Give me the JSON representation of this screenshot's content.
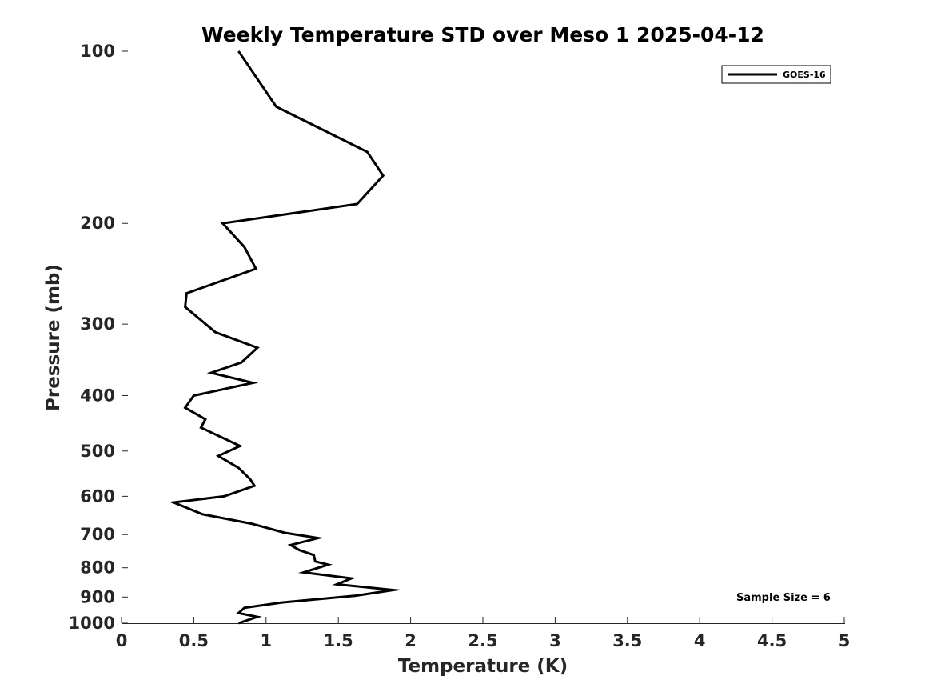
{
  "chart_data": {
    "type": "line",
    "title": "Weekly Temperature STD over Meso 1 2025-04-12",
    "xlabel": "Temperature (K)",
    "ylabel": "Pressure (mb)",
    "xlim": [
      0,
      5
    ],
    "ylim": [
      100,
      1000
    ],
    "yscale": "log",
    "y_reversed": true,
    "x_ticks": [
      0,
      0.5,
      1,
      1.5,
      2,
      2.5,
      3,
      3.5,
      4,
      4.5,
      5
    ],
    "x_tick_labels": [
      "0",
      "0.5",
      "1",
      "1.5",
      "2",
      "2.5",
      "3",
      "3.5",
      "4",
      "4.5",
      "5"
    ],
    "y_ticks": [
      100,
      200,
      300,
      400,
      500,
      600,
      700,
      800,
      900,
      1000
    ],
    "y_tick_labels": [
      "100",
      "200",
      "300",
      "400",
      "500",
      "600",
      "700",
      "800",
      "900",
      "1000"
    ],
    "grid": false,
    "legend": {
      "position": "top-right",
      "entries": [
        "GOES-16"
      ]
    },
    "annotation": "Sample Size = 6",
    "series": [
      {
        "name": "GOES-16",
        "color": "#000000",
        "temperature": [
          0.81,
          1.07,
          1.7,
          1.81,
          1.63,
          0.7,
          0.85,
          0.93,
          0.45,
          0.44,
          0.65,
          0.94,
          0.83,
          0.62,
          0.91,
          0.5,
          0.44,
          0.58,
          0.55,
          0.82,
          0.67,
          0.81,
          0.89,
          0.92,
          0.71,
          0.36,
          0.56,
          0.9,
          1.13,
          1.36,
          1.17,
          1.23,
          1.33,
          1.34,
          1.43,
          1.26,
          1.59,
          1.49,
          1.88,
          1.62,
          1.11,
          0.85,
          0.81,
          0.94,
          0.81
        ],
        "pressure": [
          100,
          125,
          150,
          165,
          185,
          200,
          220,
          240,
          265,
          280,
          310,
          330,
          350,
          365,
          380,
          400,
          420,
          440,
          455,
          490,
          510,
          535,
          560,
          575,
          600,
          615,
          645,
          670,
          695,
          710,
          730,
          745,
          760,
          780,
          790,
          815,
          835,
          855,
          875,
          895,
          920,
          940,
          960,
          975,
          1000
        ]
      }
    ]
  }
}
